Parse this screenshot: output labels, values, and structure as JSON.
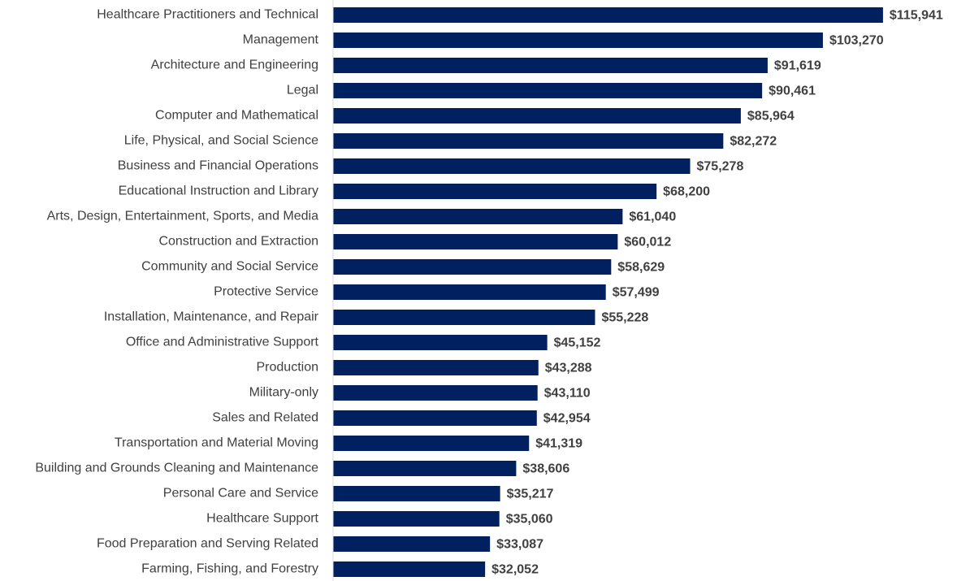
{
  "chart_data": {
    "type": "bar",
    "orientation": "horizontal",
    "color": "#002060",
    "categories": [
      "Healthcare Practitioners and Technical",
      "Management",
      "Architecture and Engineering",
      "Legal",
      "Computer and Mathematical",
      "Life, Physical, and Social Science",
      "Business and Financial Operations",
      "Educational Instruction and Library",
      "Arts, Design, Entertainment, Sports, and Media",
      "Construction and Extraction",
      "Community and Social Service",
      "Protective Service",
      "Installation, Maintenance, and Repair",
      "Office and Administrative Support",
      "Production",
      "Military-only",
      "Sales and Related",
      "Transportation and Material Moving",
      "Building and Grounds Cleaning and Maintenance",
      "Personal Care and Service",
      "Healthcare Support",
      "Food Preparation and Serving Related",
      "Farming, Fishing, and Forestry"
    ],
    "values": [
      115941,
      103270,
      91619,
      90461,
      85964,
      82272,
      75278,
      68200,
      61040,
      60012,
      58629,
      57499,
      55228,
      45152,
      43288,
      43110,
      42954,
      41319,
      38606,
      35217,
      35060,
      33087,
      32052
    ],
    "value_labels": [
      "$115,941",
      "$103,270",
      "$91,619",
      "$90,461",
      "$85,964",
      "$82,272",
      "$75,278",
      "$68,200",
      "$61,040",
      "$60,012",
      "$58,629",
      "$57,499",
      "$55,228",
      "$45,152",
      "$43,288",
      "$43,110",
      "$42,954",
      "$41,319",
      "$38,606",
      "$35,217",
      "$35,060",
      "$33,087",
      "$32,052"
    ],
    "xlim": [
      0,
      130000
    ]
  }
}
